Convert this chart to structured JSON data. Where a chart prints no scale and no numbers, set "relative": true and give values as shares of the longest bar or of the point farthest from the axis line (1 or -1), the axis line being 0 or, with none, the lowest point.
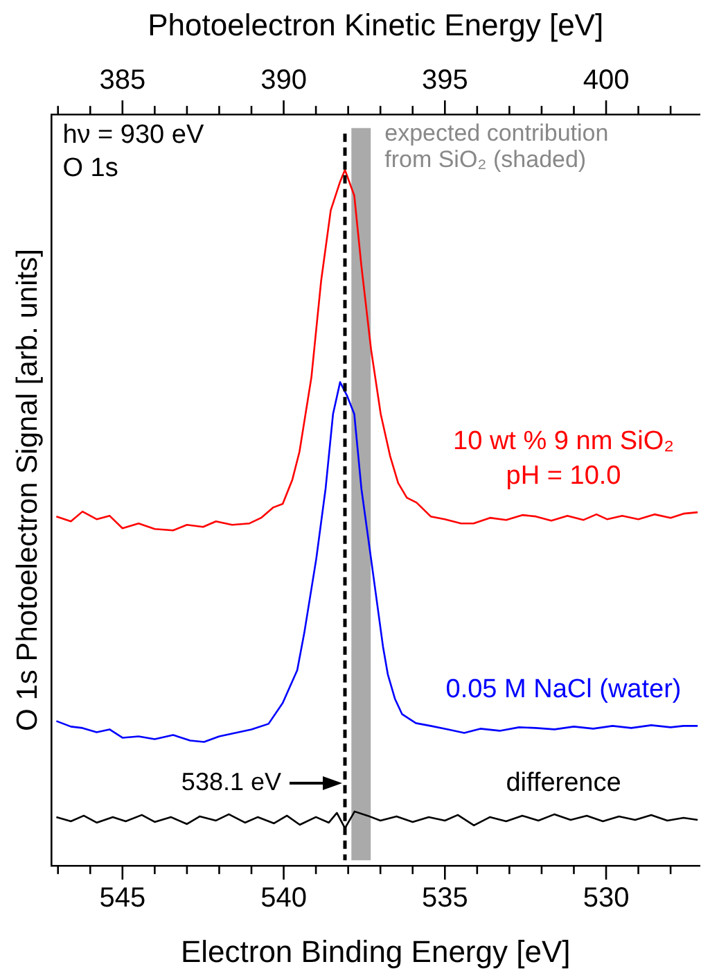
{
  "chart_data": {
    "type": "line",
    "xlabel": "Electron Binding Energy [eV]",
    "x2label": "Photoelectron Kinetic Energy [eV]",
    "ylabel": "O 1s Photoelectron Signal [arb. units]",
    "relative": true,
    "xlim": [
      547.2,
      527.1
    ],
    "xticks": [
      {
        "value": 547,
        "label": null
      },
      {
        "value": 546,
        "label": null
      },
      545,
      {
        "value": 544,
        "label": null
      },
      {
        "value": 543,
        "label": null
      },
      {
        "value": 542,
        "label": null
      },
      {
        "value": 541,
        "label": null
      },
      540,
      {
        "value": 539,
        "label": null
      },
      {
        "value": 538,
        "label": null
      },
      {
        "value": 537,
        "label": null
      },
      {
        "value": 536,
        "label": null
      },
      535,
      {
        "value": 534,
        "label": null
      },
      {
        "value": 533,
        "label": null
      },
      {
        "value": 532,
        "label": null
      },
      {
        "value": 531,
        "label": null
      },
      530,
      {
        "value": 529,
        "label": null
      },
      {
        "value": 528,
        "label": null
      }
    ],
    "x2lim": [
      382.8,
      402.9
    ],
    "x2ticks": [
      {
        "value": 383,
        "label": null
      },
      {
        "value": 384,
        "label": null
      },
      385,
      {
        "value": 386,
        "label": null
      },
      {
        "value": 387,
        "label": null
      },
      {
        "value": 388,
        "label": null
      },
      {
        "value": 389,
        "label": null
      },
      390,
      {
        "value": 391,
        "label": null
      },
      {
        "value": 392,
        "label": null
      },
      {
        "value": 393,
        "label": null
      },
      {
        "value": 394,
        "label": null
      },
      395,
      {
        "value": 396,
        "label": null
      },
      {
        "value": 397,
        "label": null
      },
      {
        "value": 398,
        "label": null
      },
      {
        "value": 399,
        "label": null
      },
      400,
      {
        "value": 401,
        "label": null
      },
      {
        "value": 402,
        "label": null
      }
    ],
    "grid": false,
    "legend": false,
    "marker": "none",
    "line_style": "solid",
    "series": [
      {
        "name": "10 wt % 9 nm SiO₂\npH = 10.0",
        "color": "#ff0000",
        "x": [
          547.05,
          546.6,
          546.24,
          545.8,
          545.4,
          545.0,
          544.5,
          544.0,
          543.43,
          543.0,
          542.5,
          542.1,
          541.6,
          541.06,
          540.7,
          540.32,
          540.03,
          539.73,
          539.51,
          539.14,
          538.84,
          538.54,
          538.25,
          538.1,
          537.81,
          537.59,
          537.29,
          536.99,
          536.7,
          536.45,
          536.18,
          535.88,
          535.44,
          535.0,
          534.5,
          534.11,
          533.6,
          533.1,
          532.6,
          532.18,
          531.7,
          531.2,
          530.7,
          530.3,
          529.97,
          529.5,
          529.0,
          528.5,
          528.0,
          527.6,
          527.16
        ],
        "values": [
          0.502,
          0.495,
          0.509,
          0.498,
          0.503,
          0.485,
          0.492,
          0.484,
          0.482,
          0.49,
          0.487,
          0.495,
          0.49,
          0.492,
          0.5,
          0.515,
          0.52,
          0.555,
          0.595,
          0.702,
          0.84,
          0.942,
          0.983,
          1.0,
          0.963,
          0.862,
          0.742,
          0.649,
          0.589,
          0.55,
          0.529,
          0.522,
          0.502,
          0.498,
          0.492,
          0.492,
          0.5,
          0.497,
          0.504,
          0.502,
          0.496,
          0.503,
          0.497,
          0.505,
          0.498,
          0.503,
          0.498,
          0.505,
          0.5,
          0.506,
          0.508
        ]
      },
      {
        "name": "0.05 M NaCl (water)",
        "color": "#0000ff",
        "x": [
          547.05,
          546.6,
          546.24,
          545.8,
          545.4,
          545.0,
          544.5,
          544.0,
          543.43,
          542.9,
          542.47,
          542.0,
          541.5,
          541.0,
          540.47,
          540.03,
          539.58,
          539.36,
          538.99,
          538.7,
          538.47,
          538.25,
          538.03,
          537.81,
          537.59,
          537.29,
          536.92,
          536.77,
          536.55,
          536.33,
          535.9,
          535.44,
          534.9,
          534.4,
          533.9,
          533.3,
          532.7,
          532.18,
          531.6,
          531.0,
          530.4,
          529.8,
          529.22,
          528.6,
          528.0,
          527.6,
          527.16
        ],
        "values": [
          0.208,
          0.2,
          0.198,
          0.192,
          0.196,
          0.184,
          0.186,
          0.182,
          0.188,
          0.18,
          0.178,
          0.186,
          0.191,
          0.196,
          0.204,
          0.234,
          0.281,
          0.335,
          0.441,
          0.542,
          0.649,
          0.695,
          0.675,
          0.649,
          0.542,
          0.441,
          0.315,
          0.275,
          0.24,
          0.218,
          0.205,
          0.201,
          0.196,
          0.191,
          0.197,
          0.194,
          0.199,
          0.198,
          0.196,
          0.2,
          0.197,
          0.201,
          0.198,
          0.202,
          0.199,
          0.201,
          0.201
        ]
      },
      {
        "name": "difference",
        "color": "#000000",
        "x": [
          547.05,
          546.6,
          546.2,
          545.8,
          545.3,
          544.9,
          544.4,
          544.0,
          543.5,
          543.0,
          542.6,
          542.1,
          541.7,
          541.2,
          540.8,
          540.3,
          539.9,
          539.5,
          539.0,
          538.6,
          538.35,
          538.1,
          537.8,
          537.4,
          537.0,
          536.5,
          536.0,
          535.5,
          535.0,
          534.6,
          534.1,
          533.6,
          533.1,
          532.6,
          532.1,
          531.6,
          531.1,
          530.6,
          530.1,
          529.6,
          529.1,
          528.6,
          528.1,
          527.6,
          527.16
        ],
        "values": [
          0.07,
          0.064,
          0.072,
          0.062,
          0.07,
          0.064,
          0.073,
          0.063,
          0.07,
          0.06,
          0.071,
          0.065,
          0.074,
          0.062,
          0.07,
          0.061,
          0.072,
          0.059,
          0.07,
          0.062,
          0.076,
          0.054,
          0.078,
          0.072,
          0.065,
          0.071,
          0.063,
          0.07,
          0.065,
          0.073,
          0.058,
          0.07,
          0.064,
          0.072,
          0.065,
          0.074,
          0.066,
          0.072,
          0.064,
          0.071,
          0.066,
          0.073,
          0.065,
          0.069,
          0.066
        ]
      }
    ],
    "ref_lines": [
      {
        "axis": "x",
        "value": 538.1,
        "label": "538.1 eV",
        "color": "#000000",
        "line_style": "dashed"
      }
    ],
    "bands": [
      {
        "axis": "x",
        "from": 537.9,
        "to": 537.3,
        "label": "expected contribution\nfrom SiO₂ (shaded)",
        "color": "#aaaaaa"
      }
    ],
    "annotations": [
      "hν = 930 eV",
      "O 1s"
    ]
  }
}
